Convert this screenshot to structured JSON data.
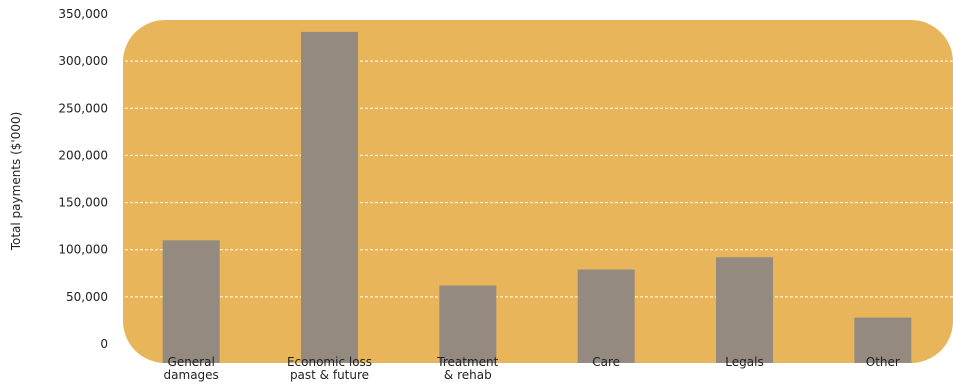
{
  "chart_data": {
    "type": "bar",
    "categories": [
      [
        "General",
        "damages"
      ],
      [
        "Economic loss",
        "past & future"
      ],
      [
        "Treatment",
        "& rehab"
      ],
      [
        "Care"
      ],
      [
        "Legals"
      ],
      [
        "Other"
      ]
    ],
    "values": [
      110000,
      331000,
      62000,
      79000,
      92000,
      28000
    ],
    "ylabel": "Total payments ($'000)",
    "ylim": [
      0,
      350000
    ],
    "yticks": [
      "0",
      "50,000",
      "100,000",
      "150,000",
      "200,000",
      "250,000",
      "300,000",
      "350,000"
    ],
    "grid": true,
    "colors": {
      "plot_background": "#e8b55a",
      "bar": "#958a80",
      "grid": "#ffffff"
    }
  }
}
